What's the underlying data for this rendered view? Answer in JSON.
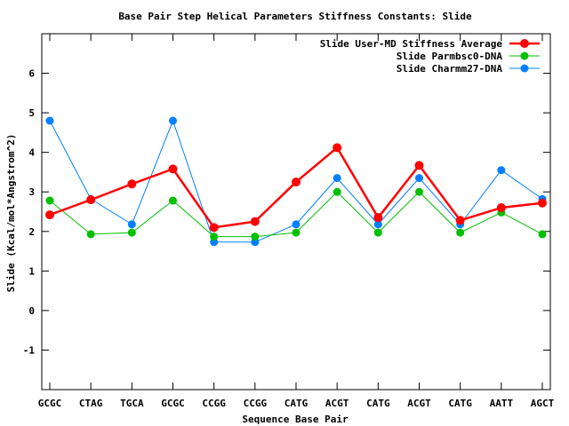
{
  "chart_data": {
    "type": "line",
    "title": "Base Pair Step Helical Parameters Stiffness Constants: Slide",
    "xlabel": "Sequence Base Pair",
    "ylabel": "Slide (Kcal/mol*Angstrom^2)",
    "categories": [
      "GCGC",
      "CTAG",
      "TGCA",
      "GCGC",
      "CCGG",
      "CCGG",
      "CATG",
      "ACGT",
      "CATG",
      "ACGT",
      "CATG",
      "AATT",
      "AGCT"
    ],
    "ylim": [
      -2,
      7
    ],
    "yticks": [
      -1,
      0,
      1,
      2,
      3,
      4,
      5,
      6
    ],
    "grid": false,
    "legend_position": "top-right",
    "series": [
      {
        "name": "Slide User-MD Stiffness Average",
        "color": "#ff0000",
        "values": [
          2.42,
          2.8,
          3.2,
          3.58,
          2.1,
          2.25,
          3.25,
          4.12,
          2.35,
          3.67,
          2.28,
          2.6,
          2.72
        ]
      },
      {
        "name": "Slide Parmbsc0-DNA",
        "color": "#00c000",
        "values": [
          2.78,
          1.93,
          1.97,
          2.78,
          1.87,
          1.87,
          1.97,
          3.0,
          1.97,
          3.0,
          1.97,
          2.48,
          1.93
        ]
      },
      {
        "name": "Slide Charmm27-DNA",
        "color": "#0080ff",
        "values": [
          4.8,
          2.82,
          2.18,
          4.8,
          1.73,
          1.73,
          2.18,
          3.35,
          2.18,
          3.35,
          2.18,
          3.55,
          2.82
        ]
      }
    ]
  }
}
